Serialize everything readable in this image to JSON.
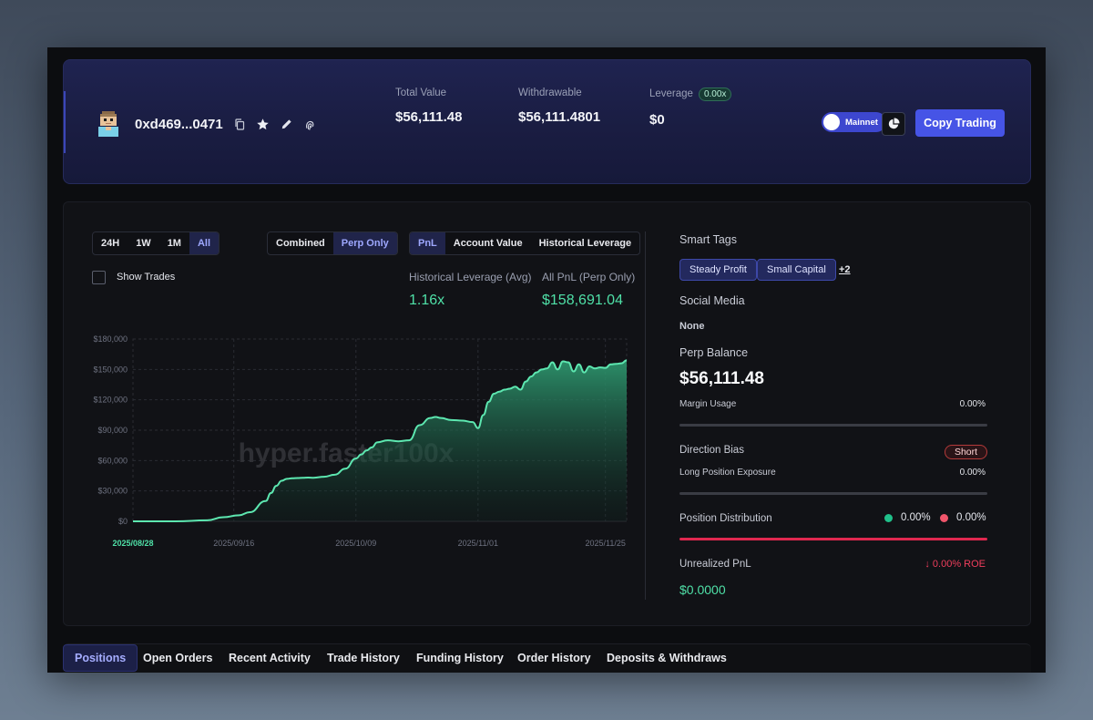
{
  "header": {
    "address": "0xd469...0471",
    "stats": [
      {
        "label": "Total Value",
        "value": "$56,111.48"
      },
      {
        "label": "Withdrawable",
        "value": "$56,111.4801"
      },
      {
        "label": "Leverage",
        "value": "$0",
        "badge": "0.00x"
      }
    ],
    "network_toggle": "Mainnet",
    "copy_button": "Copy Trading"
  },
  "controls": {
    "time_ranges": [
      "24H",
      "1W",
      "1M",
      "All"
    ],
    "time_active": "All",
    "modes": [
      "Combined",
      "Perp Only"
    ],
    "mode_active": "Perp Only",
    "metrics": [
      "PnL",
      "Account Value",
      "Historical Leverage"
    ],
    "metric_active": "PnL",
    "show_trades": "Show Trades"
  },
  "summary": {
    "leverage_label": "Historical Leverage (Avg)",
    "leverage_value": "1.16x",
    "pnl_label": "All PnL (Perp Only)",
    "pnl_value": "$158,691.04"
  },
  "chart_data": {
    "type": "area",
    "watermark": "hyper.faster100x",
    "y_ticks": [
      "$0",
      "$30,000",
      "$60,000",
      "$90,000",
      "$120,000",
      "$150,000",
      "$180,000"
    ],
    "x_ticks": [
      "2025/08/28",
      "2025/09/16",
      "2025/10/09",
      "2025/11/01",
      "2025/11/25"
    ],
    "ylim": [
      0,
      180000
    ],
    "x_days": [
      0,
      8,
      14,
      17,
      20,
      22,
      25,
      26,
      27,
      28,
      29,
      30,
      31,
      32,
      33,
      34,
      36,
      38,
      40,
      42,
      43,
      44,
      45,
      46,
      48,
      50,
      52,
      54,
      56,
      57,
      58,
      60,
      62,
      64,
      65,
      66,
      67,
      68,
      69,
      70,
      71,
      72,
      73,
      74,
      75,
      76,
      77,
      78,
      79,
      80,
      81,
      82,
      83,
      84,
      85,
      86,
      87,
      88,
      89,
      90,
      91,
      92,
      93
    ],
    "pnl": [
      0,
      0,
      1000,
      4000,
      6000,
      9000,
      20000,
      28000,
      35000,
      40000,
      42000,
      42500,
      42800,
      43000,
      43200,
      43000,
      44000,
      46000,
      52000,
      62000,
      66000,
      70000,
      73000,
      78000,
      80000,
      79000,
      80000,
      95000,
      102000,
      103000,
      102000,
      100000,
      99500,
      98000,
      92000,
      105000,
      118000,
      126000,
      128000,
      130000,
      131000,
      133000,
      130000,
      138000,
      143000,
      147000,
      150000,
      151000,
      157000,
      150000,
      158000,
      157000,
      148000,
      155000,
      147000,
      153000,
      151000,
      152000,
      151500,
      155000,
      155500,
      156000,
      159000
    ]
  },
  "smart_tags": {
    "title": "Smart Tags",
    "tags": [
      "Steady Profit",
      "Small Capital"
    ],
    "more": "+2"
  },
  "social": {
    "title": "Social Media",
    "value": "None"
  },
  "perp": {
    "title": "Perp Balance",
    "balance": "$56,111.48",
    "margin_label": "Margin Usage",
    "margin_value": "0.00%",
    "margin_fill": 0
  },
  "direction": {
    "title": "Direction Bias",
    "badge": "Short",
    "exposure_label": "Long Position Exposure",
    "exposure_value": "0.00%"
  },
  "distribution": {
    "title": "Position Distribution",
    "long_value": "0.00%",
    "short_value": "0.00%",
    "colors": {
      "long": "#20c08a",
      "short": "#f0556b"
    }
  },
  "unrealized": {
    "title": "Unrealized PnL",
    "roe": "↓ 0.00% ROE",
    "value": "$0.0000"
  },
  "tabs": [
    "Positions",
    "Open Orders",
    "Recent Activity",
    "Trade History",
    "Funding History",
    "Order History",
    "Deposits & Withdraws"
  ],
  "tab_active": "Positions"
}
